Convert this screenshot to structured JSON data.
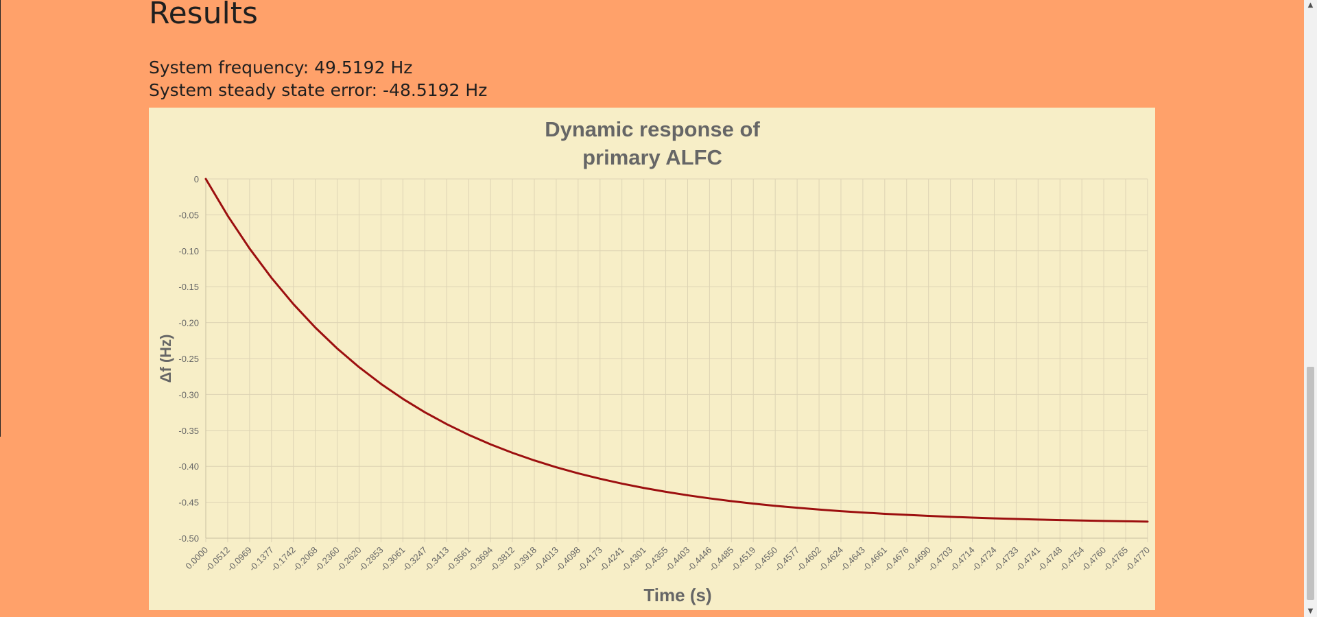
{
  "page": {
    "heading": "Results",
    "frequency_text": "System frequency: 49.5192 Hz",
    "error_text": "System steady state error: -48.5192 Hz"
  },
  "colors": {
    "background": "#ffa16a",
    "chart_background": "#f7eec7",
    "line": "#9c0f0f",
    "grid": "#ddd3b4",
    "axis_text": "#666666"
  },
  "chart_data": {
    "type": "line",
    "title_lines": [
      "Dynamic response of",
      "primary ALFC"
    ],
    "xlabel": "Time (s)",
    "ylabel": "Δf (Hz)",
    "ylim": [
      -0.5,
      0
    ],
    "yticks": [
      0,
      -0.05,
      -0.1,
      -0.15,
      -0.2,
      -0.25,
      -0.3,
      -0.35,
      -0.4,
      -0.45,
      -0.5
    ],
    "ytick_labels": [
      "0",
      "-0.05",
      "-0.10",
      "-0.15",
      "-0.20",
      "-0.25",
      "-0.30",
      "-0.35",
      "-0.40",
      "-0.45",
      "-0.50"
    ],
    "grid": true,
    "legend": "none",
    "categories": [
      "0.0000",
      "-0.0512",
      "-0.0969",
      "-0.1377",
      "-0.1742",
      "-0.2068",
      "-0.2360",
      "-0.2620",
      "-0.2853",
      "-0.3061",
      "-0.3247",
      "-0.3413",
      "-0.3561",
      "-0.3694",
      "-0.3812",
      "-0.3918",
      "-0.4013",
      "-0.4098",
      "-0.4173",
      "-0.4241",
      "-0.4301",
      "-0.4355",
      "-0.4403",
      "-0.4446",
      "-0.4485",
      "-0.4519",
      "-0.4550",
      "-0.4577",
      "-0.4602",
      "-0.4624",
      "-0.4643",
      "-0.4661",
      "-0.4676",
      "-0.4690",
      "-0.4703",
      "-0.4714",
      "-0.4724",
      "-0.4733",
      "-0.4741",
      "-0.4748",
      "-0.4754",
      "-0.4760",
      "-0.4765",
      "-0.4770"
    ],
    "series": [
      {
        "values": [
          0.0,
          -0.0512,
          -0.0969,
          -0.1377,
          -0.1742,
          -0.2068,
          -0.236,
          -0.262,
          -0.2853,
          -0.3061,
          -0.3247,
          -0.3413,
          -0.3561,
          -0.3694,
          -0.3812,
          -0.3918,
          -0.4013,
          -0.4098,
          -0.4173,
          -0.4241,
          -0.4301,
          -0.4355,
          -0.4403,
          -0.4446,
          -0.4485,
          -0.4519,
          -0.455,
          -0.4577,
          -0.4602,
          -0.4624,
          -0.4643,
          -0.4661,
          -0.4676,
          -0.469,
          -0.4703,
          -0.4714,
          -0.4724,
          -0.4733,
          -0.4741,
          -0.4748,
          -0.4754,
          -0.476,
          -0.4765,
          -0.477
        ]
      }
    ]
  }
}
